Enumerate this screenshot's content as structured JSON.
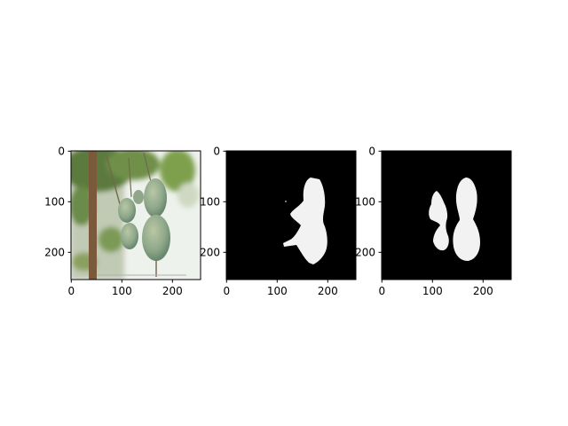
{
  "chart_data": [
    {
      "type": "image",
      "content": "photo of hanging green bottle gourds among leaves",
      "xlim": [
        0,
        256
      ],
      "ylim": [
        256,
        0
      ],
      "xticks": [
        0,
        100,
        200
      ],
      "yticks": [
        0,
        100,
        200
      ],
      "xtick_labels": [
        "0",
        "100",
        "200"
      ],
      "ytick_labels": [
        "0",
        "100",
        "200"
      ]
    },
    {
      "type": "image",
      "content": "predicted segmentation mask (single merged blob, white on black)",
      "xlim": [
        0,
        256
      ],
      "ylim": [
        256,
        0
      ],
      "xticks": [
        0,
        100,
        200
      ],
      "yticks": [
        0,
        100,
        200
      ],
      "xtick_labels": [
        "0",
        "100",
        "200"
      ],
      "ytick_labels": [
        "0",
        "100",
        "200"
      ]
    },
    {
      "type": "image",
      "content": "ground-truth segmentation mask (two gourds, white on black)",
      "xlim": [
        0,
        256
      ],
      "ylim": [
        256,
        0
      ],
      "xticks": [
        0,
        100,
        200
      ],
      "yticks": [
        0,
        100,
        200
      ],
      "xtick_labels": [
        "0",
        "100",
        "200"
      ],
      "ytick_labels": [
        "0",
        "100",
        "200"
      ]
    }
  ]
}
